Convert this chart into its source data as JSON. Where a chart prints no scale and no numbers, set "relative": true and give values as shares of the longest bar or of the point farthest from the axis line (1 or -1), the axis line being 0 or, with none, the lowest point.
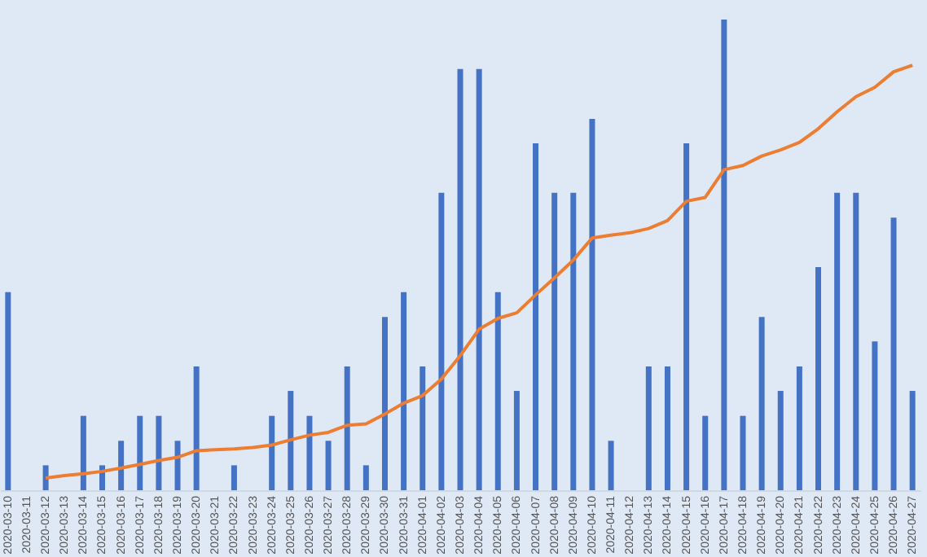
{
  "chart_data": {
    "type": "bar",
    "relative": true,
    "categories": [
      "2020-03-10",
      "2020-03-11",
      "2020-03-12",
      "2020-03-13",
      "2020-03-14",
      "2020-03-15",
      "2020-03-16",
      "2020-03-17",
      "2020-03-18",
      "2020-03-19",
      "2020-03-20",
      "2020-03-21",
      "2020-03-22",
      "2020-03-23",
      "2020-03-24",
      "2020-03-25",
      "2020-03-26",
      "2020-03-27",
      "2020-03-28",
      "2020-03-29",
      "2020-03-30",
      "2020-03-31",
      "2020-04-01",
      "2020-04-02",
      "2020-04-03",
      "2020-04-04",
      "2020-04-05",
      "2020-04-06",
      "2020-04-07",
      "2020-04-08",
      "2020-04-09",
      "2020-04-10",
      "2020-04-11",
      "2020-04-12",
      "2020-04-13",
      "2020-04-14",
      "2020-04-15",
      "2020-04-16",
      "2020-04-17",
      "2020-04-18",
      "2020-04-19",
      "2020-04-20",
      "2020-04-21",
      "2020-04-22",
      "2020-04-23",
      "2020-04-24",
      "2020-04-25",
      "2020-04-26",
      "2020-04-27"
    ],
    "series": [
      {
        "color": "#4472c4",
        "values": [
          0.421,
          0,
          0.053,
          0,
          0.158,
          0.053,
          0.105,
          0.158,
          0.158,
          0.105,
          0.263,
          0,
          0.053,
          0,
          0.158,
          0.211,
          0.158,
          0.105,
          0.263,
          0.053,
          0.368,
          0.421,
          0.263,
          0.632,
          0.895,
          0.895,
          0.421,
          0.211,
          0.737,
          0.632,
          0.632,
          0.789,
          0.105,
          0,
          0.263,
          0.263,
          0.737,
          0.158,
          1,
          0.158,
          0.368,
          0.211,
          0.263,
          0.474,
          0.632,
          0.632,
          0.316,
          0.579,
          0.211
        ]
      },
      {
        "type": "line",
        "color": "#ed7d31",
        "values": [
          null,
          null,
          0.026,
          0.031,
          0.035,
          0.04,
          0.047,
          0.055,
          0.063,
          0.07,
          0.084,
          0.086,
          0.088,
          0.091,
          0.096,
          0.107,
          0.117,
          0.123,
          0.138,
          0.141,
          0.162,
          0.185,
          0.201,
          0.236,
          0.286,
          0.342,
          0.365,
          0.377,
          0.415,
          0.451,
          0.489,
          0.536,
          0.542,
          0.547,
          0.556,
          0.573,
          0.614,
          0.622,
          0.681,
          0.69,
          0.71,
          0.723,
          0.739,
          0.768,
          0.804,
          0.836,
          0.856,
          0.889,
          0.903
        ]
      }
    ]
  }
}
